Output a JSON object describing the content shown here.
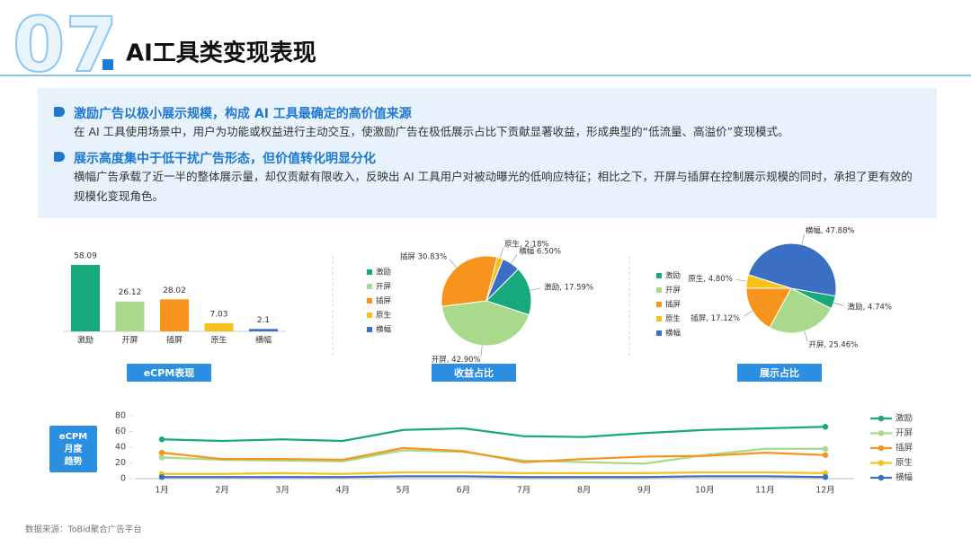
{
  "header": {
    "number": "07",
    "title": "AI工具类变现表现"
  },
  "insights": [
    {
      "heading": "激励广告以极小展示规模，构成 AI 工具最确定的高价值来源",
      "text": "在 AI 工具使用场景中，用户为功能或权益进行主动交互，使激励广告在极低展示占比下贡献显著收益，形成典型的“低流量、高溢价”变现模式。"
    },
    {
      "heading": "展示高度集中于低干扰广告形态，但价值转化明显分化",
      "text": "横幅广告承载了近一半的整体展示量，却仅贡献有限收入，反映出 AI 工具用户对被动曝光的低响应特征；相比之下，开屏与插屏在控制展示规模的同时，承担了更有效的规模化变现角色。"
    }
  ],
  "chart_data": [
    {
      "type": "bar",
      "title": "eCPM表现",
      "categories": [
        "激励",
        "开屏",
        "插屏",
        "原生",
        "横幅"
      ],
      "values": [
        58.09,
        26.12,
        28.02,
        7.03,
        2.1
      ],
      "colors": [
        "#17a97b",
        "#a9d98b",
        "#f7941d",
        "#f4c21b",
        "#3b6fc4"
      ]
    },
    {
      "type": "pie",
      "title": "收益占比",
      "categories": [
        "激励",
        "开屏",
        "插屏",
        "原生",
        "横幅"
      ],
      "values": [
        17.59,
        42.9,
        30.83,
        2.18,
        6.5
      ],
      "value_labels": [
        "激励, 17.59%",
        "开屏, 42.90%",
        "插屏 30.83%",
        "原生, 2.18%",
        "横幅 6.50%"
      ],
      "colors": [
        "#17a97b",
        "#a9d98b",
        "#f7941d",
        "#f4c21b",
        "#3b6fc4"
      ]
    },
    {
      "type": "pie",
      "title": "展示占比",
      "categories": [
        "激励",
        "开屏",
        "插屏",
        "原生",
        "横幅"
      ],
      "values": [
        4.74,
        25.46,
        17.12,
        4.8,
        47.88
      ],
      "value_labels": [
        "激励, 4.74%",
        "开屏, 25.46%",
        "插屏, 17.12%",
        "原生, 4.80%",
        "横幅, 47.88%"
      ],
      "colors": [
        "#17a97b",
        "#a9d98b",
        "#f7941d",
        "#f4c21b",
        "#3b6fc4"
      ]
    },
    {
      "type": "line",
      "title": [
        "eCPM",
        "月度",
        "趋势"
      ],
      "categories": [
        "1月",
        "2月",
        "3月",
        "4月",
        "5月",
        "6月",
        "7月",
        "8月",
        "9月",
        "10月",
        "11月",
        "12月"
      ],
      "ylim": [
        0,
        80
      ],
      "yticks": [
        0,
        20,
        40,
        60,
        80
      ],
      "series": [
        {
          "name": "激励",
          "color": "#17a97b",
          "values": [
            50,
            48,
            50,
            48,
            62,
            64,
            54,
            53,
            58,
            62,
            64,
            66
          ]
        },
        {
          "name": "开屏",
          "color": "#a9d98b",
          "values": [
            27,
            24,
            23,
            22,
            36,
            34,
            23,
            21,
            19,
            30,
            38,
            38
          ]
        },
        {
          "name": "插屏",
          "color": "#f7941d",
          "values": [
            33,
            25,
            25,
            24,
            39,
            35,
            21,
            25,
            28,
            29,
            33,
            30
          ]
        },
        {
          "name": "原生",
          "color": "#f4c21b",
          "values": [
            6,
            6,
            7,
            6,
            8,
            8,
            7,
            7,
            7,
            8,
            8,
            7
          ]
        },
        {
          "name": "横幅",
          "color": "#3b6fc4",
          "values": [
            2,
            2,
            2,
            2,
            3,
            3,
            2,
            2,
            2,
            3,
            3,
            2
          ]
        }
      ]
    }
  ],
  "source": "数据来源：ToBid聚合广告平台"
}
